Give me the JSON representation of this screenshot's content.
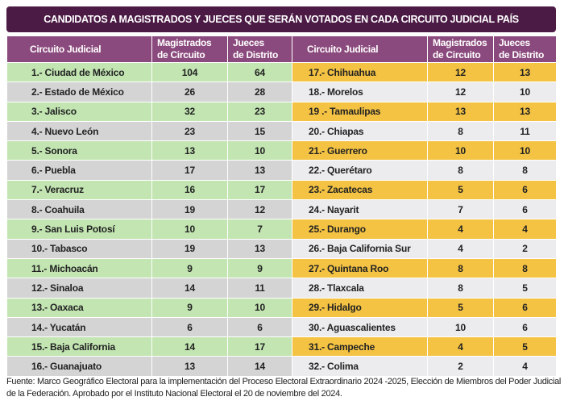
{
  "title": "CANDIDATOS A MAGISTRADOS Y JUECES QUE SERÁN VOTADOS EN CADA CIRCUITO JUDICIAL PAÍS",
  "headers": {
    "circuito": "Circuito Judicial",
    "magistrados_1": "Magistrados",
    "magistrados_2": "de Circuito",
    "jueces_1": "Jueces",
    "jueces_2": "de Distrito"
  },
  "left_rows": [
    {
      "name": "1.- Ciudad de México",
      "magistrados": "104",
      "jueces": "64"
    },
    {
      "name": "2.- Estado de México",
      "magistrados": "26",
      "jueces": "28"
    },
    {
      "name": "3.- Jalisco",
      "magistrados": "32",
      "jueces": "23"
    },
    {
      "name": "4.- Nuevo León",
      "magistrados": "23",
      "jueces": "15"
    },
    {
      "name": "5.- Sonora",
      "magistrados": "13",
      "jueces": "10"
    },
    {
      "name": "6.- Puebla",
      "magistrados": "17",
      "jueces": "13"
    },
    {
      "name": "7.- Veracruz",
      "magistrados": "16",
      "jueces": "17"
    },
    {
      "name": "8.- Coahuila",
      "magistrados": "19",
      "jueces": "12"
    },
    {
      "name": "9.- San Luis Potosí",
      "magistrados": "10",
      "jueces": "7"
    },
    {
      "name": "10.- Tabasco",
      "magistrados": "19",
      "jueces": "13"
    },
    {
      "name": "11.- Michoacán",
      "magistrados": "9",
      "jueces": "9"
    },
    {
      "name": "12.- Sinaloa",
      "magistrados": "14",
      "jueces": "11"
    },
    {
      "name": "13.- Oaxaca",
      "magistrados": "9",
      "jueces": "10"
    },
    {
      "name": "14.- Yucatán",
      "magistrados": "6",
      "jueces": "6"
    },
    {
      "name": "15.- Baja California",
      "magistrados": "14",
      "jueces": "17"
    },
    {
      "name": "16.- Guanajuato",
      "magistrados": "13",
      "jueces": "14"
    }
  ],
  "right_rows": [
    {
      "name": "17.- Chihuahua",
      "magistrados": "12",
      "jueces": "13"
    },
    {
      "name": "18.- Morelos",
      "magistrados": "12",
      "jueces": "10"
    },
    {
      "name": "19 .- Tamaulipas",
      "magistrados": "13",
      "jueces": "13"
    },
    {
      "name": "20.- Chiapas",
      "magistrados": "8",
      "jueces": "11"
    },
    {
      "name": "21.- Guerrero",
      "magistrados": "10",
      "jueces": "10"
    },
    {
      "name": "22.- Querétaro",
      "magistrados": "8",
      "jueces": "8"
    },
    {
      "name": "23.- Zacatecas",
      "magistrados": "5",
      "jueces": "6"
    },
    {
      "name": "24.- Nayarit",
      "magistrados": "7",
      "jueces": "6"
    },
    {
      "name": "25.- Durango",
      "magistrados": "4",
      "jueces": "4"
    },
    {
      "name": "26.- Baja California Sur",
      "magistrados": "4",
      "jueces": "2"
    },
    {
      "name": "27.- Quintana Roo",
      "magistrados": "8",
      "jueces": "8"
    },
    {
      "name": "28.- Tlaxcala",
      "magistrados": "8",
      "jueces": "5"
    },
    {
      "name": "29.- Hidalgo",
      "magistrados": "5",
      "jueces": "6"
    },
    {
      "name": "30.- Aguascalientes",
      "magistrados": "10",
      "jueces": "6"
    },
    {
      "name": "31.- Campeche",
      "magistrados": "4",
      "jueces": "5"
    },
    {
      "name": "32.- Colima",
      "magistrados": "2",
      "jueces": "4"
    }
  ],
  "colors": {
    "title_bg": "#4b1a45",
    "header_bg": "#8b4a7d",
    "green": "#c2e5b2",
    "gray": "#d4d4d4",
    "orange": "#f4c343",
    "light_gray": "#ececee"
  },
  "footnote": "Fuente: Marco Geográfico Electoral para la implementación del Proceso Electoral Extraordinario 2024 -2025, Elección de Miembros del Poder Judicial de la Federación. Aprobado por el Instituto Nacional Electoral el 20 de noviembre del 2024."
}
